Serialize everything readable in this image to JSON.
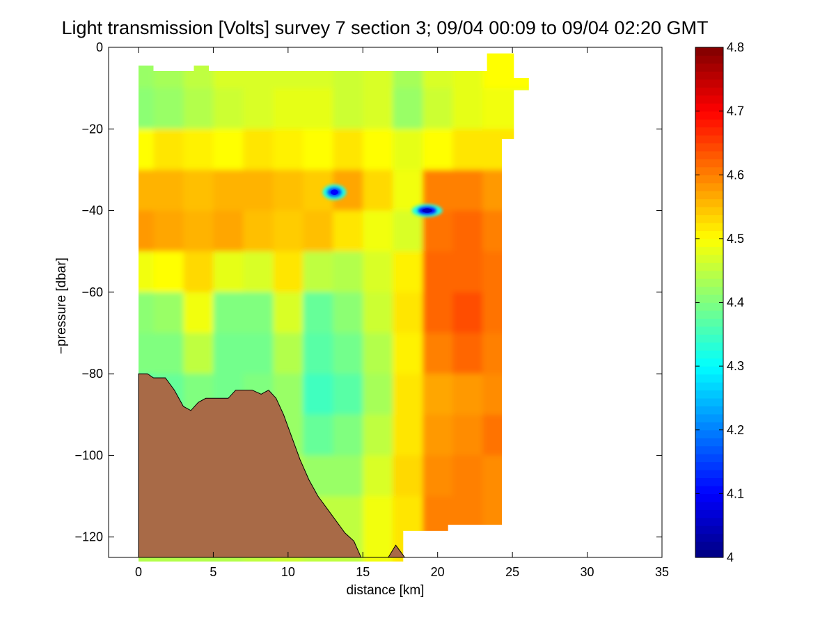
{
  "chart_data": {
    "type": "heatmap",
    "title": "Light transmission [Volts] survey 7 section 3; 09/04 00:09 to 09/04 02:20 GMT",
    "xlabel": "distance [km]",
    "ylabel": "−pressure [dbar]",
    "xlim": [
      -2,
      35
    ],
    "ylim": [
      -125,
      0
    ],
    "xticks": [
      0,
      5,
      10,
      15,
      20,
      25,
      30,
      35
    ],
    "yticks": [
      0,
      -20,
      -40,
      -60,
      -80,
      -100,
      -120
    ],
    "ytick_labels": [
      "0",
      "−20",
      "−40",
      "−60",
      "−80",
      "−100",
      "−120"
    ],
    "colorbar": {
      "range": [
        4,
        4.8
      ],
      "ticks": [
        4,
        4.1,
        4.2,
        4.3,
        4.4,
        4.5,
        4.6,
        4.7,
        4.8
      ],
      "tick_labels": [
        "4",
        "4.1",
        "4.2",
        "4.3",
        "4.4",
        "4.5",
        "4.6",
        "4.7",
        "4.8"
      ],
      "colormap": "jet"
    },
    "field": {
      "x": [
        0,
        2,
        4,
        6,
        8,
        10,
        12,
        14,
        16,
        18,
        20,
        22,
        24
      ],
      "y": [
        -5,
        -15,
        -25,
        -35,
        -45,
        -55,
        -65,
        -75,
        -85,
        -95,
        -105,
        -115
      ],
      "values": [
        [
          4.42,
          4.43,
          4.45,
          4.47,
          4.47,
          4.47,
          4.47,
          4.46,
          4.47,
          4.43,
          4.47,
          4.48,
          4.5
        ],
        [
          4.41,
          4.42,
          4.44,
          4.46,
          4.47,
          4.48,
          4.48,
          4.46,
          4.47,
          4.42,
          4.46,
          4.48,
          4.49
        ],
        [
          4.5,
          4.52,
          4.51,
          4.5,
          4.52,
          4.51,
          4.5,
          4.52,
          4.5,
          4.48,
          4.5,
          4.52,
          4.52
        ],
        [
          4.56,
          4.56,
          4.55,
          4.56,
          4.56,
          4.55,
          4.54,
          4.57,
          4.53,
          4.49,
          4.6,
          4.6,
          4.58
        ],
        [
          4.58,
          4.57,
          4.56,
          4.57,
          4.55,
          4.54,
          4.55,
          4.52,
          4.49,
          4.47,
          4.61,
          4.62,
          4.6
        ],
        [
          4.49,
          4.5,
          4.53,
          4.48,
          4.47,
          4.52,
          4.45,
          4.44,
          4.47,
          4.51,
          4.62,
          4.62,
          4.61
        ],
        [
          4.41,
          4.42,
          4.49,
          4.4,
          4.4,
          4.47,
          4.38,
          4.41,
          4.46,
          4.52,
          4.62,
          4.64,
          4.61
        ],
        [
          4.4,
          4.4,
          4.45,
          4.39,
          4.39,
          4.44,
          4.37,
          4.39,
          4.44,
          4.51,
          4.6,
          4.62,
          4.6
        ],
        [
          4.37,
          4.38,
          4.4,
          4.39,
          4.4,
          4.42,
          4.35,
          4.37,
          4.43,
          4.52,
          4.57,
          4.58,
          4.59
        ],
        [
          4.4,
          4.4,
          4.4,
          4.4,
          4.41,
          4.42,
          4.38,
          4.4,
          4.45,
          4.52,
          4.58,
          4.59,
          4.61
        ],
        [
          4.42,
          4.42,
          4.42,
          4.42,
          4.42,
          4.44,
          4.42,
          4.42,
          4.47,
          4.53,
          4.59,
          4.6,
          4.59
        ],
        [
          4.44,
          4.44,
          4.44,
          4.44,
          4.45,
          4.46,
          4.45,
          4.45,
          4.49,
          4.52,
          4.6,
          4.6,
          4.59
        ]
      ]
    },
    "anomalies": [
      {
        "x": 13.1,
        "y": -35.5,
        "value": 4.1
      },
      {
        "x": 19.3,
        "y": -40.0,
        "value": 4.05
      }
    ],
    "seafloor": {
      "color": "#A86A47",
      "x": [
        0,
        0.6,
        1.0,
        1.8,
        2.4,
        3.0,
        3.5,
        4.0,
        4.5,
        5.0,
        5.6,
        6.0,
        6.5,
        7.0,
        7.6,
        8.2,
        8.7,
        9.2,
        9.7,
        10.2,
        10.8,
        11.4,
        12.0,
        12.6,
        13.2,
        13.8,
        14.4,
        15.0,
        15.6,
        16.1,
        16.7,
        17.2,
        17.6,
        17.8
      ],
      "y": [
        -80,
        -80,
        -81,
        -81,
        -84,
        -88,
        -89,
        -87,
        -86,
        -86,
        -86,
        -86,
        -84,
        -84,
        -84,
        -85,
        -84,
        -86,
        -90,
        -95,
        -101,
        -106,
        -110,
        -113,
        -116,
        -119,
        -121,
        -126,
        -130,
        -129,
        -125,
        -122,
        -124,
        -125
      ]
    },
    "data_region": {
      "x": [
        0,
        1,
        1,
        3.7,
        3.7,
        4.7,
        4.7,
        23.3,
        23.3,
        25.1,
        25.1,
        26.1,
        26.1,
        25.1,
        25.1,
        24.3,
        24.3,
        20.7,
        20.7,
        17.7,
        17.7,
        0
      ],
      "y": [
        -4.5,
        -4.5,
        -5.8,
        -5.8,
        -4.5,
        -4.5,
        -5.8,
        -5.8,
        -1.5,
        -1.5,
        -7.5,
        -7.5,
        -10.5,
        -10.5,
        -22.5,
        -22.5,
        -117,
        -117,
        -118.5,
        -118.5,
        -126,
        -126
      ]
    }
  }
}
